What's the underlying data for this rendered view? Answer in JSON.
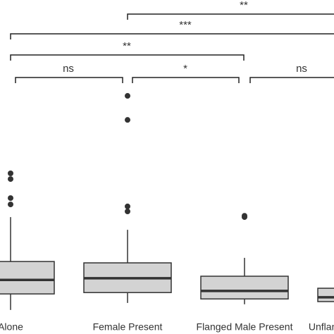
{
  "chart_data": {
    "type": "box",
    "categories": [
      "Alone",
      "Female Present",
      "Flanged Male Present",
      "Unflanged Male Present"
    ],
    "ylim": [
      0,
      100
    ],
    "color": "#d3d3d3",
    "boxes": [
      {
        "whislo": 7.2,
        "q1": 12.0,
        "median": 16.2,
        "q3": 21.7,
        "whishi": 35.0,
        "fliers": [
          48.1,
          46.4,
          40.7,
          38.8
        ]
      },
      {
        "whislo": 9.3,
        "q1": 12.4,
        "median": 16.7,
        "q3": 21.3,
        "whishi": 31.2,
        "fliers": [
          71.3,
          64.1,
          38.2,
          36.7
        ]
      },
      {
        "whislo": 8.9,
        "q1": 10.5,
        "median": 12.9,
        "q3": 17.3,
        "whishi": 22.8,
        "fliers": [
          35.4,
          35.0
        ]
      },
      {
        "whislo": 9.3,
        "q1": 9.7,
        "median": 11.0,
        "q3": 13.7,
        "whishi": 13.7,
        "fliers": []
      }
    ],
    "annotations": [
      "**",
      "***",
      "**",
      "ns",
      "*",
      "ns"
    ]
  }
}
